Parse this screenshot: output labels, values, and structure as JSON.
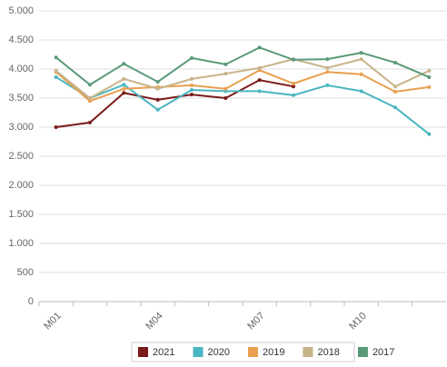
{
  "chart_data": {
    "type": "line",
    "categories": [
      "M01",
      null,
      null,
      "M04",
      null,
      null,
      "M07",
      null,
      null,
      "M10",
      null,
      null
    ],
    "series": [
      {
        "name": "2021",
        "color": "#7b1a1a",
        "values": [
          3000,
          3080,
          3590,
          3470,
          3560,
          3500,
          3810,
          3700,
          null,
          null,
          null,
          null
        ]
      },
      {
        "name": "2020",
        "color": "#4ab6c0",
        "values": [
          3860,
          3500,
          3730,
          3300,
          3640,
          3620,
          3620,
          3550,
          3720,
          3620,
          3340,
          2880
        ]
      },
      {
        "name": "2019",
        "color": "#e8a050",
        "values": [
          3950,
          3450,
          3660,
          3690,
          3720,
          3660,
          3980,
          3750,
          3950,
          3910,
          3610,
          3690
        ]
      },
      {
        "name": "2018",
        "color": "#c8b48a",
        "values": [
          3970,
          3500,
          3830,
          3660,
          3830,
          3920,
          4020,
          4170,
          4020,
          4170,
          3700,
          3970
        ]
      },
      {
        "name": "2017",
        "color": "#5a9a78",
        "values": [
          4200,
          3730,
          4090,
          3780,
          4190,
          4080,
          4370,
          4160,
          4170,
          4280,
          4110,
          3860
        ]
      }
    ],
    "ylim": [
      0,
      5000
    ],
    "yticks": [
      0,
      {
        "value": 500,
        "label": "500"
      },
      {
        "value": 1000,
        "label": "1.000"
      },
      {
        "value": 1500,
        "label": "1.500"
      },
      {
        "value": 2000,
        "label": "2.000"
      },
      {
        "value": 2500,
        "label": "2.500"
      },
      {
        "value": 3000,
        "label": "3.000"
      },
      {
        "value": 3500,
        "label": "3.500"
      },
      {
        "value": 4000,
        "label": "4.000"
      },
      {
        "value": 4500,
        "label": "4.500"
      },
      {
        "value": 5000,
        "label": "5.000"
      }
    ],
    "grid": true
  }
}
